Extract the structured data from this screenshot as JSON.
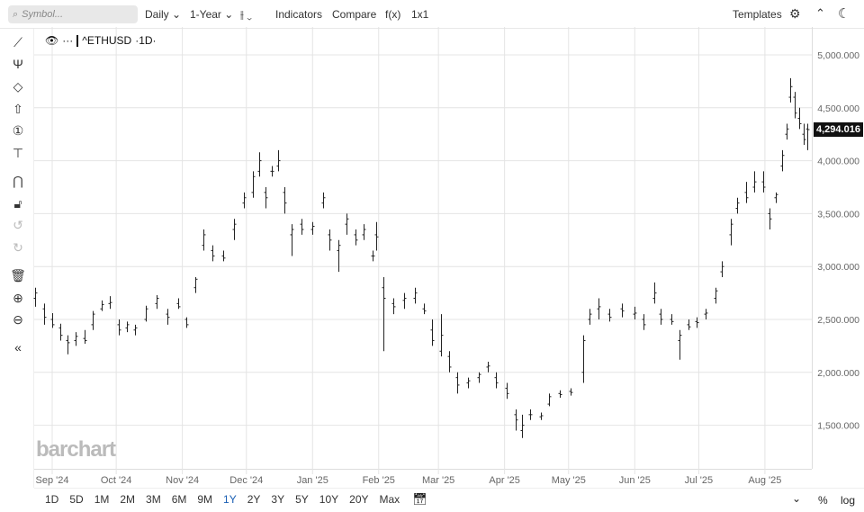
{
  "toolbar": {
    "search_placeholder": "Symbol...",
    "interval": "Daily",
    "range": "1-Year",
    "bar_type_icon": "ohlc-bars-icon",
    "indicators": "Indicators",
    "compare": "Compare",
    "fx": "f(x)",
    "layout": "1x1",
    "templates": "Templates"
  },
  "legend": {
    "symbol": "^ETHUSD",
    "interval": "·1D·"
  },
  "watermark": "barchart",
  "last_price": "4,294.016",
  "range_buttons": [
    "1D",
    "5D",
    "1M",
    "2M",
    "3M",
    "6M",
    "9M",
    "1Y",
    "2Y",
    "3Y",
    "5Y",
    "10Y",
    "20Y",
    "Max"
  ],
  "active_range": "1Y",
  "bottom_right": {
    "percent": "%",
    "log": "log"
  },
  "colors": {
    "bars": "#222222",
    "grid": "#e4e4e4",
    "active": "#1a5fb4",
    "last_price_bg": "#111111"
  },
  "chart_data": {
    "type": "ohlc",
    "ylim": [
      1300,
      5200
    ],
    "y_ticks": [
      1500,
      2000,
      2500,
      3000,
      3500,
      4000,
      4500,
      5000
    ],
    "y_tick_labels": [
      "1,500.000",
      "2,000.000",
      "2,500.000",
      "3,000.000",
      "3,500.000",
      "4,000.000",
      "4,500.000",
      "5,000.000"
    ],
    "x_ticks": [
      "2024-09-01",
      "2024-10-01",
      "2024-11-01",
      "2024-12-01",
      "2025-01-01",
      "2025-02-01",
      "2025-03-01",
      "2025-04-01",
      "2025-05-01",
      "2025-06-01",
      "2025-07-01",
      "2025-08-01"
    ],
    "x_tick_labels": [
      "Sep '24",
      "Oct '24",
      "Nov '24",
      "Dec '24",
      "Jan '25",
      "Feb '25",
      "Mar '25",
      "Apr '25",
      "May '25",
      "Jun '25",
      "Jul '25",
      "Aug '25"
    ],
    "grid": true,
    "bars": [
      [
        "2024-08-24",
        2700,
        2800,
        2620,
        2750
      ],
      [
        "2024-08-28",
        2600,
        2650,
        2450,
        2520
      ],
      [
        "2024-09-01",
        2500,
        2560,
        2420,
        2450
      ],
      [
        "2024-09-05",
        2420,
        2460,
        2300,
        2350
      ],
      [
        "2024-09-08",
        2300,
        2350,
        2170,
        2280
      ],
      [
        "2024-09-12",
        2300,
        2380,
        2250,
        2340
      ],
      [
        "2024-09-16",
        2320,
        2400,
        2270,
        2300
      ],
      [
        "2024-09-20",
        2450,
        2580,
        2400,
        2550
      ],
      [
        "2024-09-24",
        2600,
        2680,
        2580,
        2640
      ],
      [
        "2024-09-28",
        2650,
        2720,
        2600,
        2660
      ],
      [
        "2024-10-02",
        2450,
        2500,
        2350,
        2400
      ],
      [
        "2024-10-06",
        2420,
        2480,
        2380,
        2450
      ],
      [
        "2024-10-10",
        2400,
        2450,
        2350,
        2420
      ],
      [
        "2024-10-15",
        2500,
        2630,
        2480,
        2600
      ],
      [
        "2024-10-20",
        2650,
        2730,
        2600,
        2700
      ],
      [
        "2024-10-25",
        2550,
        2600,
        2450,
        2520
      ],
      [
        "2024-10-30",
        2650,
        2700,
        2600,
        2620
      ],
      [
        "2024-11-03",
        2500,
        2520,
        2420,
        2450
      ],
      [
        "2024-11-07",
        2800,
        2900,
        2750,
        2880
      ],
      [
        "2024-11-11",
        3200,
        3350,
        3150,
        3300
      ],
      [
        "2024-11-15",
        3150,
        3200,
        3050,
        3100
      ],
      [
        "2024-11-20",
        3100,
        3150,
        3050,
        3080
      ],
      [
        "2024-11-25",
        3350,
        3450,
        3250,
        3400
      ],
      [
        "2024-11-30",
        3600,
        3700,
        3550,
        3650
      ],
      [
        "2024-12-04",
        3700,
        3900,
        3650,
        3850
      ],
      [
        "2024-12-07",
        3900,
        4080,
        3850,
        4000
      ],
      [
        "2024-12-10",
        3700,
        3750,
        3550,
        3650
      ],
      [
        "2024-12-13",
        3900,
        3950,
        3850,
        3900
      ],
      [
        "2024-12-16",
        3950,
        4100,
        3900,
        4000
      ],
      [
        "2024-12-19",
        3700,
        3750,
        3500,
        3600
      ],
      [
        "2024-12-22",
        3300,
        3400,
        3100,
        3350
      ],
      [
        "2024-12-27",
        3400,
        3450,
        3300,
        3350
      ],
      [
        "2025-01-01",
        3350,
        3420,
        3300,
        3380
      ],
      [
        "2025-01-06",
        3600,
        3700,
        3550,
        3650
      ],
      [
        "2025-01-09",
        3300,
        3350,
        3150,
        3250
      ],
      [
        "2025-01-13",
        3150,
        3250,
        2950,
        3200
      ],
      [
        "2025-01-17",
        3400,
        3500,
        3300,
        3450
      ],
      [
        "2025-01-21",
        3300,
        3350,
        3200,
        3250
      ],
      [
        "2025-01-25",
        3300,
        3400,
        3250,
        3350
      ],
      [
        "2025-01-29",
        3100,
        3150,
        3050,
        3100
      ],
      [
        "2025-01-31",
        3300,
        3420,
        3150,
        3280
      ],
      [
        "2025-02-03",
        2800,
        2900,
        2200,
        2700
      ],
      [
        "2025-02-08",
        2650,
        2700,
        2550,
        2620
      ],
      [
        "2025-02-13",
        2680,
        2750,
        2600,
        2700
      ],
      [
        "2025-02-18",
        2700,
        2800,
        2650,
        2750
      ],
      [
        "2025-02-22",
        2600,
        2650,
        2550,
        2580
      ],
      [
        "2025-02-26",
        2400,
        2500,
        2250,
        2300
      ],
      [
        "2025-03-02",
        2200,
        2550,
        2150,
        2350
      ],
      [
        "2025-03-06",
        2150,
        2200,
        2000,
        2050
      ],
      [
        "2025-03-10",
        1950,
        2000,
        1800,
        1880
      ],
      [
        "2025-03-15",
        1900,
        1950,
        1850,
        1920
      ],
      [
        "2025-03-20",
        1950,
        2000,
        1900,
        1980
      ],
      [
        "2025-03-24",
        2050,
        2100,
        2000,
        2060
      ],
      [
        "2025-03-28",
        1950,
        2000,
        1850,
        1900
      ],
      [
        "2025-04-02",
        1850,
        1900,
        1750,
        1800
      ],
      [
        "2025-04-06",
        1600,
        1650,
        1450,
        1550
      ],
      [
        "2025-04-09",
        1450,
        1600,
        1380,
        1500
      ],
      [
        "2025-04-13",
        1600,
        1650,
        1550,
        1600
      ],
      [
        "2025-04-18",
        1580,
        1620,
        1550,
        1590
      ],
      [
        "2025-04-22",
        1700,
        1800,
        1680,
        1770
      ],
      [
        "2025-04-27",
        1800,
        1830,
        1760,
        1790
      ],
      [
        "2025-05-02",
        1820,
        1850,
        1780,
        1810
      ],
      [
        "2025-05-08",
        2000,
        2350,
        1900,
        2300
      ],
      [
        "2025-05-11",
        2500,
        2600,
        2450,
        2550
      ],
      [
        "2025-05-15",
        2600,
        2700,
        2500,
        2620
      ],
      [
        "2025-05-20",
        2550,
        2600,
        2480,
        2520
      ],
      [
        "2025-05-26",
        2600,
        2650,
        2520,
        2580
      ],
      [
        "2025-06-01",
        2550,
        2620,
        2500,
        2560
      ],
      [
        "2025-06-05",
        2500,
        2550,
        2400,
        2450
      ],
      [
        "2025-06-10",
        2700,
        2850,
        2650,
        2750
      ],
      [
        "2025-06-13",
        2550,
        2600,
        2450,
        2500
      ],
      [
        "2025-06-18",
        2500,
        2550,
        2450,
        2480
      ],
      [
        "2025-06-22",
        2300,
        2400,
        2120,
        2350
      ],
      [
        "2025-06-26",
        2450,
        2500,
        2400,
        2430
      ],
      [
        "2025-06-30",
        2480,
        2520,
        2420,
        2470
      ],
      [
        "2025-07-04",
        2550,
        2600,
        2500,
        2560
      ],
      [
        "2025-07-09",
        2700,
        2800,
        2650,
        2770
      ],
      [
        "2025-07-12",
        2950,
        3050,
        2900,
        3000
      ],
      [
        "2025-07-16",
        3300,
        3450,
        3200,
        3400
      ],
      [
        "2025-07-19",
        3550,
        3650,
        3500,
        3600
      ],
      [
        "2025-07-23",
        3700,
        3800,
        3600,
        3650
      ],
      [
        "2025-07-27",
        3750,
        3900,
        3700,
        3800
      ],
      [
        "2025-07-31",
        3800,
        3900,
        3700,
        3750
      ],
      [
        "2025-08-03",
        3500,
        3550,
        3350,
        3450
      ],
      [
        "2025-08-06",
        3650,
        3700,
        3600,
        3680
      ],
      [
        "2025-08-09",
        3950,
        4100,
        3900,
        4050
      ],
      [
        "2025-08-11",
        4250,
        4350,
        4200,
        4300
      ],
      [
        "2025-08-13",
        4600,
        4780,
        4550,
        4700
      ],
      [
        "2025-08-15",
        4600,
        4650,
        4400,
        4450
      ],
      [
        "2025-08-17",
        4400,
        4500,
        4300,
        4350
      ],
      [
        "2025-08-19",
        4250,
        4350,
        4150,
        4200
      ],
      [
        "2025-08-21",
        4300,
        4350,
        4100,
        4294
      ]
    ]
  }
}
